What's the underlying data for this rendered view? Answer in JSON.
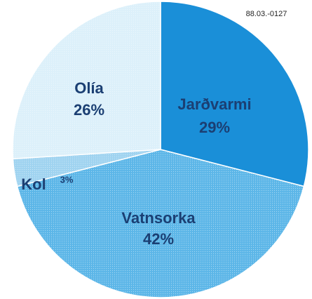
{
  "chart_data": {
    "type": "pie",
    "annotation": "88.03.-0127",
    "categories": [
      "Jarðvarmi",
      "Vatnsorka",
      "Kol",
      "Olía"
    ],
    "values": [
      29,
      42,
      3,
      26
    ],
    "value_labels": [
      "29%",
      "42%",
      "3%",
      "26%"
    ],
    "colors": [
      "#1a8fd8",
      "#5cb6e8",
      "#9fd3f0",
      "#dcf0fa"
    ]
  }
}
